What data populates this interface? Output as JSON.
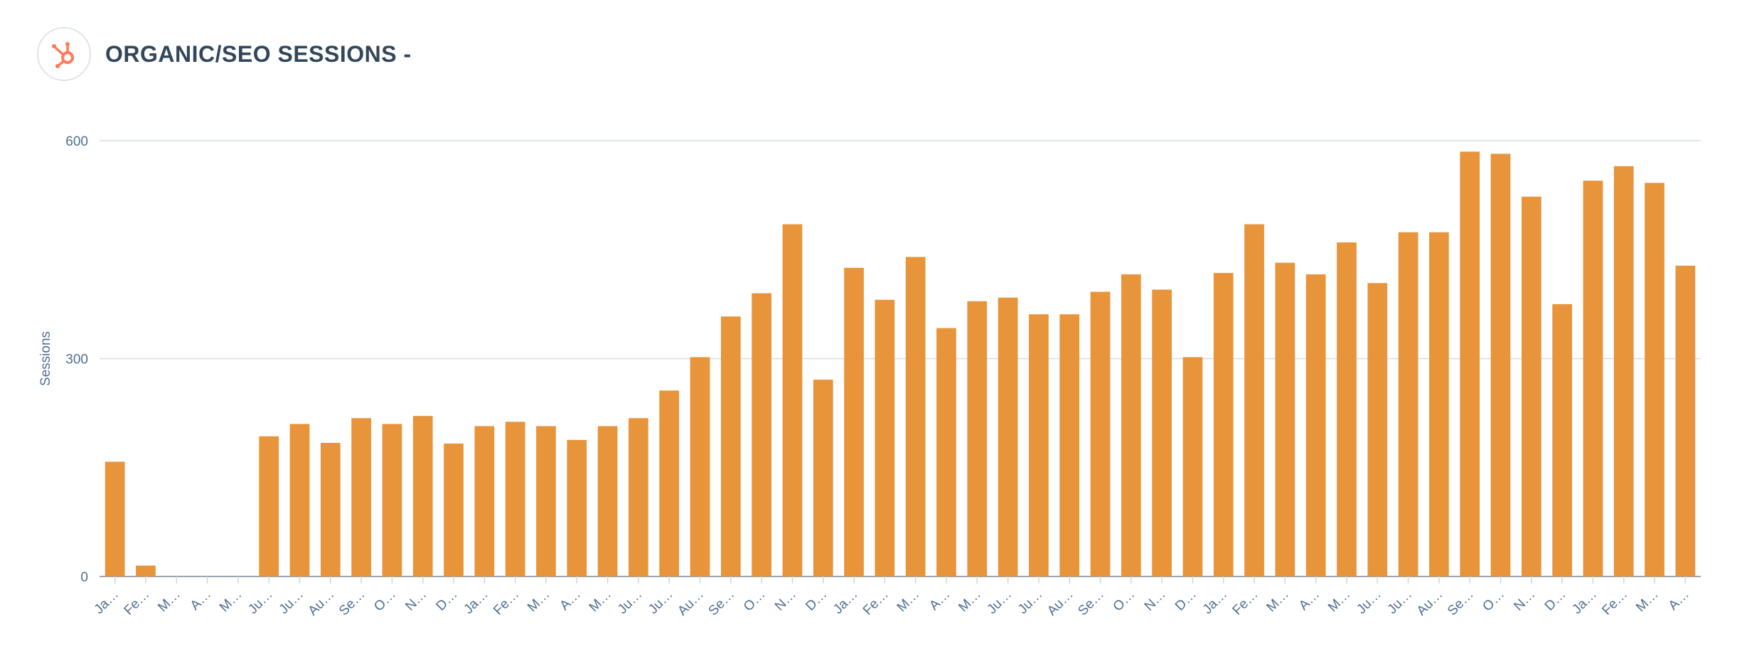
{
  "header": {
    "title": "ORGANIC/SEO SESSIONS -",
    "logo_icon": "hubspot-sprocket-icon",
    "logo_color": "#ff7a59"
  },
  "chart_data": {
    "type": "bar",
    "title": "ORGANIC/SEO SESSIONS -",
    "xlabel": "",
    "ylabel": "Sessions",
    "ylim": [
      0,
      600
    ],
    "yticks": [
      0,
      300,
      600
    ],
    "grid": true,
    "bar_color": "#e8943a",
    "categories": [
      "Ja…",
      "Fe…",
      "M…",
      "A…",
      "M…",
      "Ju…",
      "Ju…",
      "Au…",
      "Se…",
      "O…",
      "N…",
      "D…",
      "Ja…",
      "Fe…",
      "M…",
      "A…",
      "M…",
      "Ju…",
      "Ju…",
      "Au…",
      "Se…",
      "O…",
      "N…",
      "D…",
      "Ja…",
      "Fe…",
      "M…",
      "A…",
      "M…",
      "Ju…",
      "Ju…",
      "Au…",
      "Se…",
      "O…",
      "N…",
      "D…",
      "Ja…",
      "Fe…",
      "M…",
      "A…",
      "M…",
      "Ju…",
      "Ju…",
      "Au…",
      "Se…",
      "O…",
      "N…",
      "D…",
      "Ja…",
      "Fe…",
      "M…",
      "A…"
    ],
    "series": [
      {
        "values": [
          158,
          15,
          0,
          0,
          0,
          193,
          210,
          184,
          218,
          210,
          221,
          183,
          207,
          213,
          207,
          188,
          207,
          218,
          256,
          302,
          358,
          390,
          485,
          271,
          425,
          381,
          440,
          342,
          379,
          384,
          361,
          361,
          392,
          416,
          395,
          302,
          418,
          485,
          432,
          416,
          460,
          404,
          474,
          474,
          585,
          582,
          523,
          375,
          545,
          565,
          542,
          428
        ]
      }
    ]
  }
}
